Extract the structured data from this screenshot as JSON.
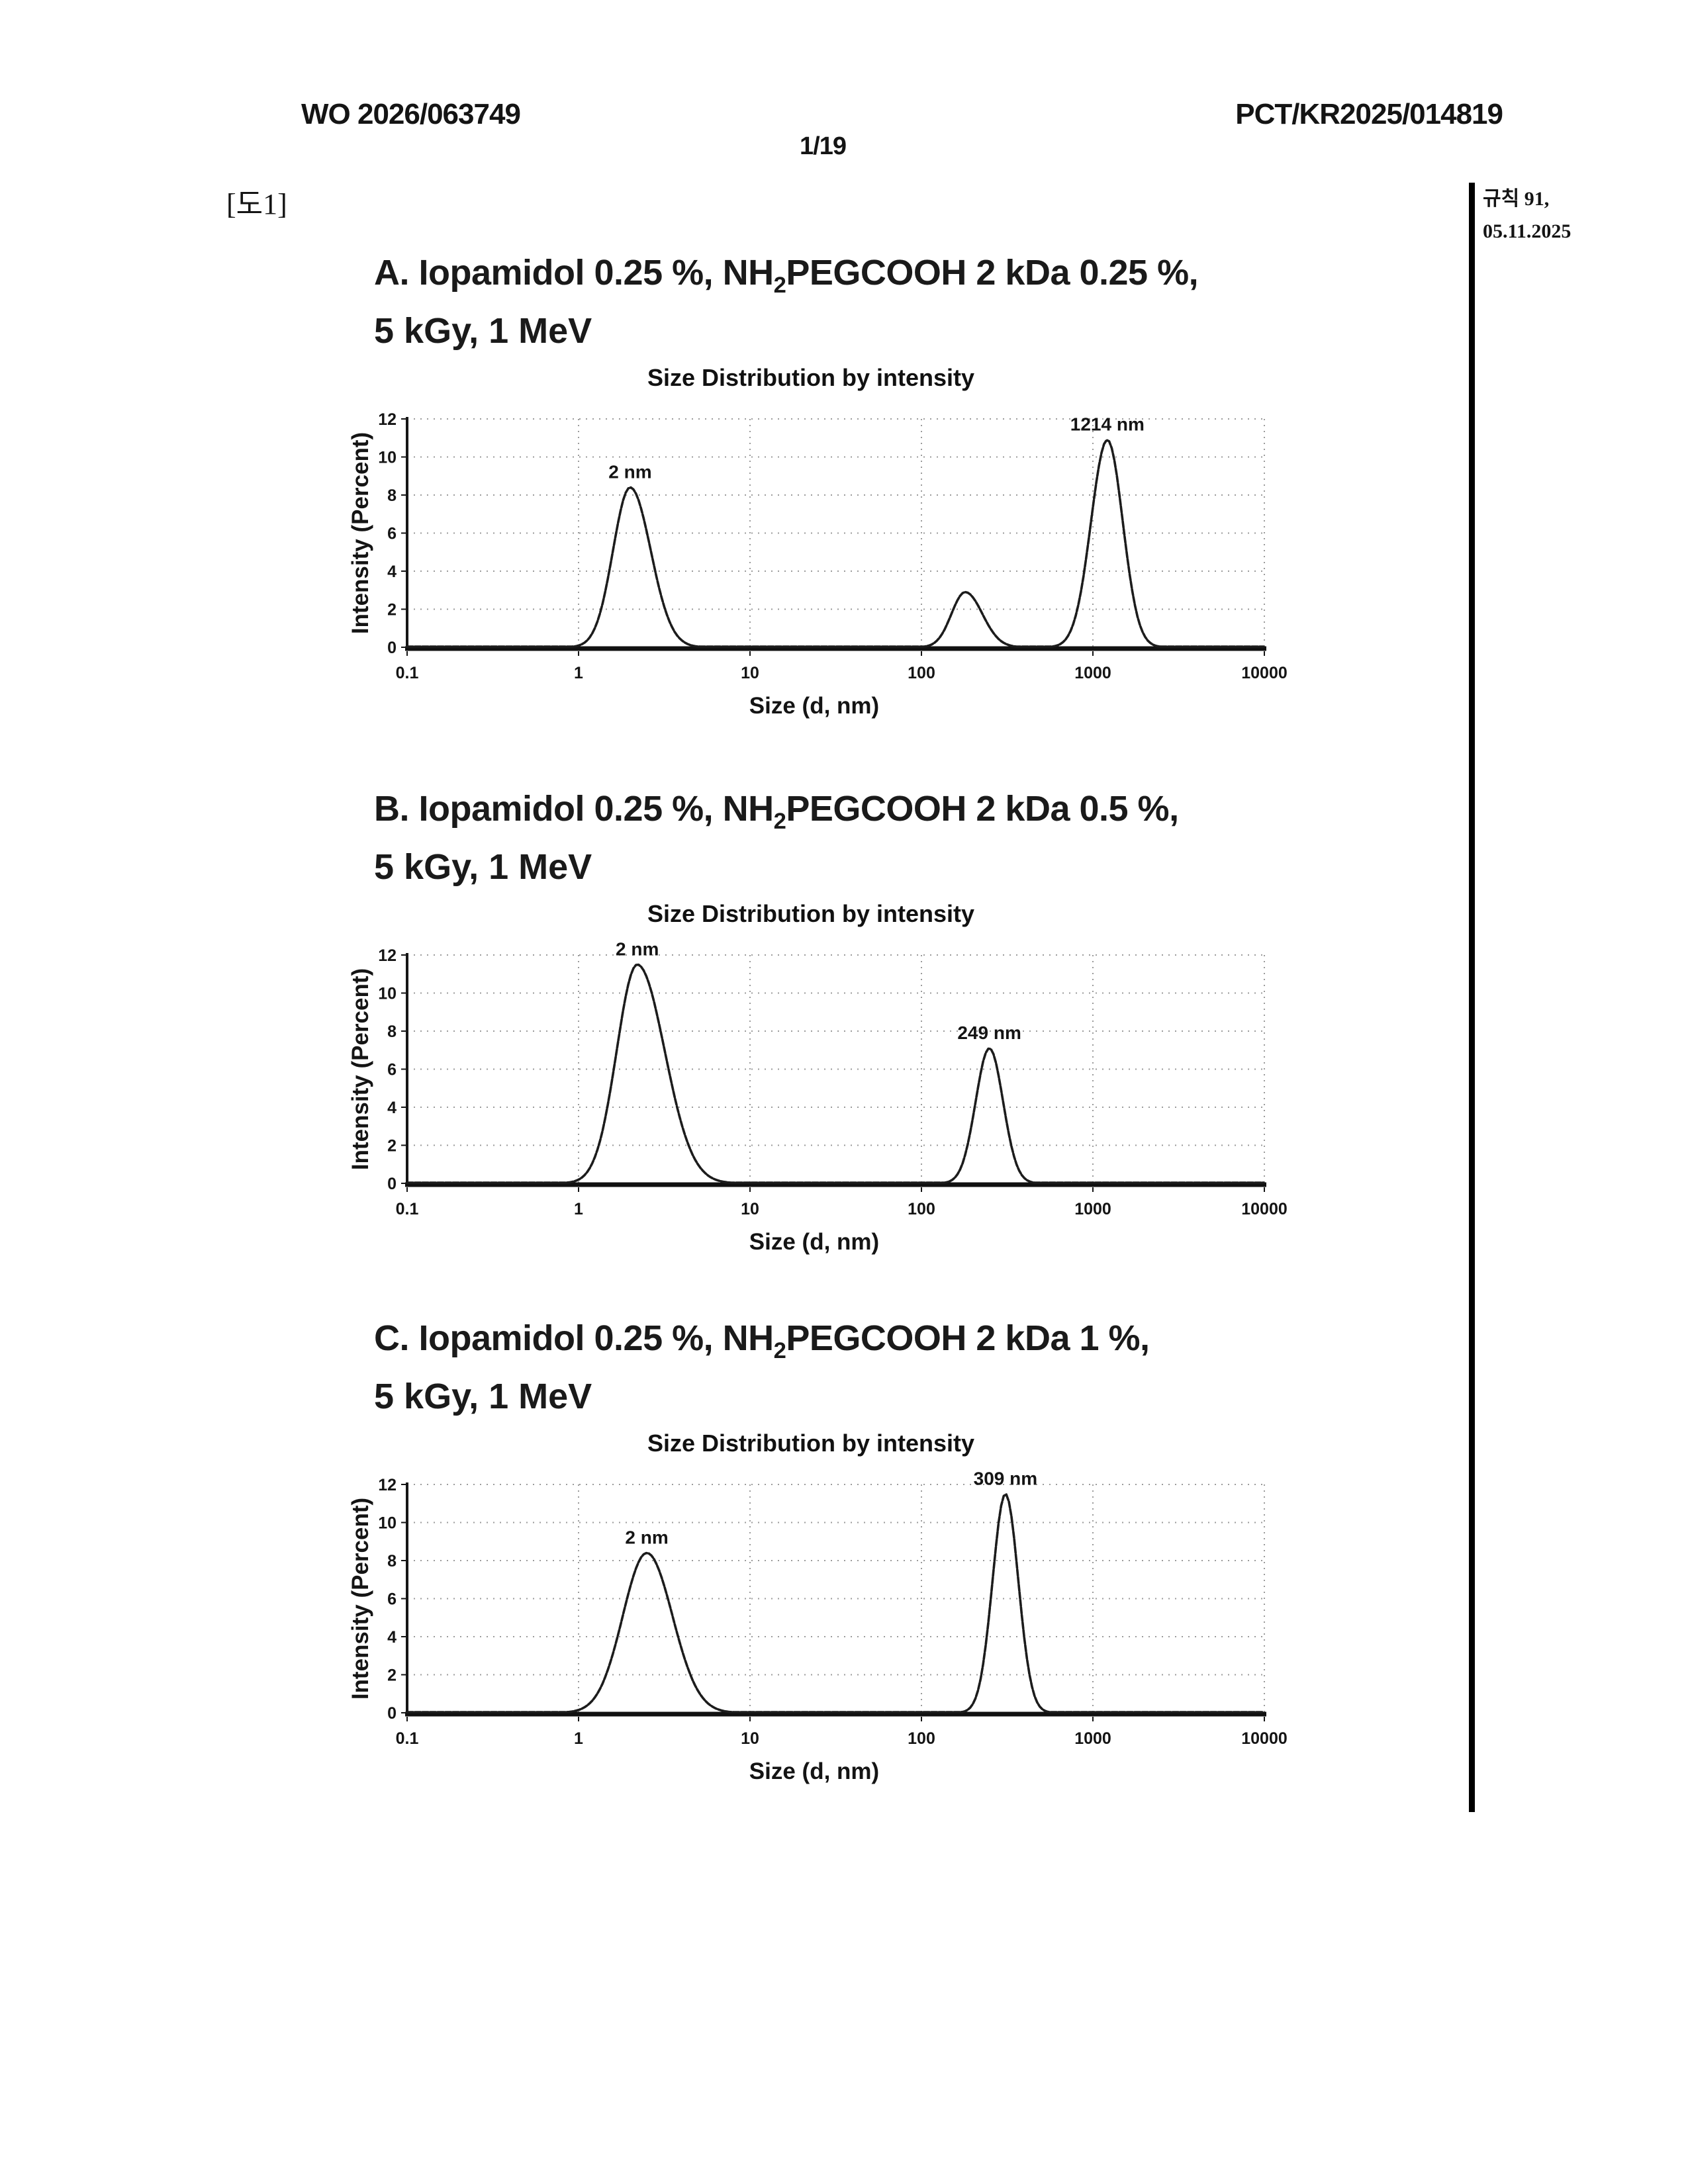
{
  "page": {
    "header": {
      "publication_number": "WO 2026/063749",
      "application_number": "PCT/KR2025/014819",
      "sheet_indicator": "1/19"
    },
    "figure_label": "[도1]",
    "rule_stamp": {
      "line1": "규칙 91,",
      "line2": "05.11.2025"
    }
  },
  "chart_data": [
    {
      "id": "A",
      "type": "line",
      "section_title": {
        "prefix": "A. Iopamidol 0.25 %, NH",
        "subscript": "2",
        "suffix": "PEGCOOH 2 kDa 0.25 %,",
        "line2": "5 kGy, 1 MeV"
      },
      "title": "Size Distribution by intensity",
      "xlabel": "Size (d, nm)",
      "ylabel": "Intensity (Percent)",
      "x_scale": "log",
      "xlim": [
        0.1,
        10000
      ],
      "ylim": [
        0,
        12
      ],
      "x_ticks": [
        "0.1",
        "1",
        "10",
        "100",
        "1000",
        "10000"
      ],
      "y_ticks": [
        0,
        2,
        4,
        6,
        8,
        10,
        12
      ],
      "grid": true,
      "peaks": [
        {
          "label": "2 nm",
          "center_nm": 2,
          "height_percent": 8.4,
          "sigma_log_left": 0.1,
          "sigma_log_right": 0.12
        },
        {
          "label": null,
          "center_nm": 180,
          "height_percent": 2.9,
          "sigma_log_left": 0.08,
          "sigma_log_right": 0.1
        },
        {
          "label": "1214 nm",
          "center_nm": 1214,
          "height_percent": 10.9,
          "sigma_log_left": 0.095,
          "sigma_log_right": 0.09
        }
      ]
    },
    {
      "id": "B",
      "type": "line",
      "section_title": {
        "prefix": "B. Iopamidol 0.25 %, NH",
        "subscript": "2",
        "suffix": "PEGCOOH 2 kDa 0.5 %,",
        "line2": "5 kGy, 1 MeV"
      },
      "title": "Size Distribution by intensity",
      "xlabel": "Size (d, nm)",
      "ylabel": "Intensity (Percent)",
      "x_scale": "log",
      "xlim": [
        0.1,
        10000
      ],
      "ylim": [
        0,
        12
      ],
      "x_ticks": [
        "0.1",
        "1",
        "10",
        "100",
        "1000",
        "10000"
      ],
      "y_ticks": [
        0,
        2,
        4,
        6,
        8,
        10,
        12
      ],
      "grid": true,
      "peaks": [
        {
          "label": "2 nm",
          "center_nm": 2.2,
          "height_percent": 11.5,
          "sigma_log_left": 0.12,
          "sigma_log_right": 0.16
        },
        {
          "label": "249 nm",
          "center_nm": 249,
          "height_percent": 7.1,
          "sigma_log_left": 0.08,
          "sigma_log_right": 0.08
        }
      ]
    },
    {
      "id": "C",
      "type": "line",
      "section_title": {
        "prefix": "C. Iopamidol 0.25 %, NH",
        "subscript": "2",
        "suffix": "PEGCOOH 2 kDa 1 %,",
        "line2": "5 kGy, 1 MeV"
      },
      "title": "Size Distribution by intensity",
      "xlabel": "Size (d, nm)",
      "ylabel": "Intensity (Percent)",
      "x_scale": "log",
      "xlim": [
        0.1,
        10000
      ],
      "ylim": [
        0,
        12
      ],
      "x_ticks": [
        "0.1",
        "1",
        "10",
        "100",
        "1000",
        "10000"
      ],
      "y_ticks": [
        0,
        2,
        4,
        6,
        8,
        10,
        12
      ],
      "grid": true,
      "peaks": [
        {
          "label": "2 nm",
          "center_nm": 2.5,
          "height_percent": 8.4,
          "sigma_log_left": 0.14,
          "sigma_log_right": 0.15
        },
        {
          "label": "309 nm",
          "center_nm": 309,
          "height_percent": 11.5,
          "sigma_log_left": 0.075,
          "sigma_log_right": 0.075
        }
      ]
    }
  ]
}
